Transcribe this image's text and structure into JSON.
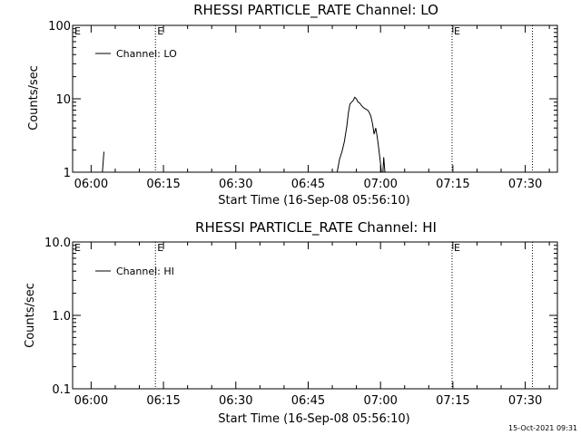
{
  "timestamp": "15-Oct-2021 09:31",
  "chart_data": [
    {
      "type": "line",
      "title": "RHESSI PARTICLE_RATE Channel: LO",
      "xlabel": "Start Time (16-Sep-08 05:56:10)",
      "ylabel": "Counts/sec",
      "yscale": "log",
      "ylim": [
        1,
        100
      ],
      "xlim": [
        "05:56:10",
        "07:36:40"
      ],
      "yticks": [
        1,
        10,
        100
      ],
      "ytick_labels": [
        "1",
        "10",
        "100"
      ],
      "xticks": [
        "06:00",
        "06:15",
        "06:30",
        "06:45",
        "07:00",
        "07:15",
        "07:30"
      ],
      "legend": {
        "label": "Channel: LO",
        "position": "top-left"
      },
      "event_markers": [
        {
          "time": "06:13:20",
          "label": "E"
        },
        {
          "time": "07:14:50",
          "label": "E"
        },
        {
          "time": "07:31:30",
          "label": ""
        }
      ],
      "series": [
        {
          "name": "Channel: LO",
          "segments": [
            [
              [
                "06:02:20",
                1.0
              ],
              [
                "06:02:40",
                1.9
              ]
            ],
            [
              [
                "06:51:00",
                1.0
              ],
              [
                "06:51:30",
                1.5
              ],
              [
                "06:52:00",
                1.9
              ],
              [
                "06:52:30",
                2.6
              ],
              [
                "06:53:00",
                4.2
              ],
              [
                "06:53:20",
                6.5
              ],
              [
                "06:53:40",
                8.5
              ],
              [
                "06:54:00",
                9.0
              ],
              [
                "06:54:20",
                9.5
              ],
              [
                "06:54:40",
                10.5
              ],
              [
                "06:55:00",
                10.0
              ],
              [
                "06:55:20",
                9.0
              ],
              [
                "06:55:40",
                8.8
              ],
              [
                "06:56:00",
                8.2
              ],
              [
                "06:56:20",
                7.7
              ],
              [
                "06:56:40",
                7.4
              ],
              [
                "06:57:00",
                7.2
              ],
              [
                "06:57:20",
                7.0
              ],
              [
                "06:57:40",
                6.5
              ],
              [
                "06:58:00",
                5.8
              ],
              [
                "06:58:20",
                4.6
              ],
              [
                "06:58:40",
                3.3
              ],
              [
                "06:59:00",
                4.0
              ],
              [
                "06:59:20",
                3.0
              ],
              [
                "06:59:40",
                2.0
              ],
              [
                "07:00:00",
                1.3
              ],
              [
                "07:00:10",
                1.0
              ]
            ],
            [
              [
                "07:00:30",
                1.0
              ],
              [
                "07:00:40",
                1.6
              ],
              [
                "07:00:55",
                1.0
              ]
            ]
          ]
        }
      ]
    },
    {
      "type": "line",
      "title": "RHESSI PARTICLE_RATE Channel: HI",
      "xlabel": "Start Time (16-Sep-08 05:56:10)",
      "ylabel": "Counts/sec",
      "yscale": "log",
      "ylim": [
        0.1,
        10
      ],
      "xlim": [
        "05:56:10",
        "07:36:40"
      ],
      "yticks": [
        0.1,
        1,
        10
      ],
      "ytick_labels": [
        "0.1",
        "1.0",
        "10.0"
      ],
      "xticks": [
        "06:00",
        "06:15",
        "06:30",
        "06:45",
        "07:00",
        "07:15",
        "07:30"
      ],
      "legend": {
        "label": "Channel: HI",
        "position": "top-left"
      },
      "event_markers": [
        {
          "time": "06:13:20",
          "label": "E"
        },
        {
          "time": "07:14:50",
          "label": "E"
        },
        {
          "time": "07:31:30",
          "label": ""
        }
      ],
      "series": [
        {
          "name": "Channel: HI",
          "segments": []
        }
      ]
    }
  ]
}
